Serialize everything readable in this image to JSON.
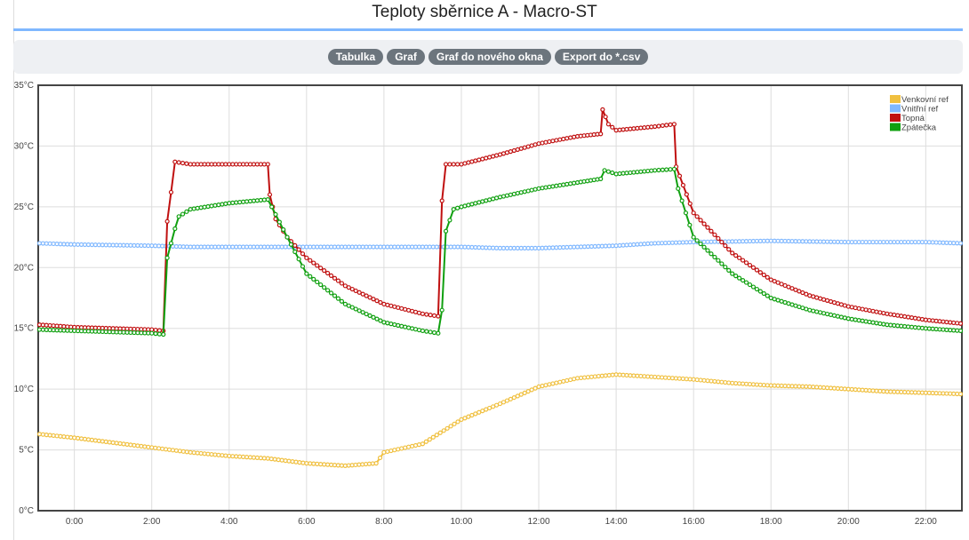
{
  "title": "Teploty sběrnice A - Macro-ST",
  "buttons": [
    "Tabulka",
    "Graf",
    "Graf do nového okna",
    "Export do *.csv"
  ],
  "chart_data": {
    "type": "line",
    "title": "Teploty sběrnice A - Macro-ST",
    "xlabel": "",
    "ylabel": "",
    "x_ticks": [
      "0:00",
      "2:00",
      "4:00",
      "6:00",
      "8:00",
      "10:00",
      "12:00",
      "14:00",
      "16:00",
      "18:00",
      "20:00",
      "22:00"
    ],
    "y_ticks": [
      "0°C",
      "5°C",
      "10°C",
      "15°C",
      "20°C",
      "25°C",
      "30°C",
      "35°C"
    ],
    "ylim": [
      0,
      35
    ],
    "xlim": [
      "23:04",
      "22:56"
    ],
    "grid": true,
    "legend_position": "top-right",
    "series": [
      {
        "name": "Venkovní ref",
        "color": "#f0c040",
        "points": [
          [
            "23:06",
            6.3
          ],
          [
            "0:00",
            6.0
          ],
          [
            "1:00",
            5.6
          ],
          [
            "2:00",
            5.2
          ],
          [
            "3:00",
            4.8
          ],
          [
            "4:00",
            4.5
          ],
          [
            "5:00",
            4.3
          ],
          [
            "6:00",
            3.9
          ],
          [
            "7:00",
            3.7
          ],
          [
            "7:48",
            3.9
          ],
          [
            "8:00",
            4.8
          ],
          [
            "9:00",
            5.5
          ],
          [
            "10:00",
            7.5
          ],
          [
            "11:00",
            8.8
          ],
          [
            "12:00",
            10.2
          ],
          [
            "13:00",
            10.9
          ],
          [
            "14:00",
            11.2
          ],
          [
            "15:00",
            11.0
          ],
          [
            "16:00",
            10.8
          ],
          [
            "17:00",
            10.5
          ],
          [
            "18:00",
            10.3
          ],
          [
            "19:00",
            10.2
          ],
          [
            "20:00",
            10.0
          ],
          [
            "21:00",
            9.8
          ],
          [
            "22:00",
            9.7
          ],
          [
            "22:54",
            9.6
          ]
        ]
      },
      {
        "name": "Vnitřní ref",
        "color": "#80b8ff",
        "points": [
          [
            "23:06",
            22.0
          ],
          [
            "0:00",
            21.9
          ],
          [
            "2:00",
            21.8
          ],
          [
            "3:00",
            21.7
          ],
          [
            "6:00",
            21.7
          ],
          [
            "8:00",
            21.7
          ],
          [
            "10:00",
            21.7
          ],
          [
            "11:00",
            21.6
          ],
          [
            "12:00",
            21.6
          ],
          [
            "14:00",
            21.8
          ],
          [
            "15:00",
            22.0
          ],
          [
            "16:00",
            22.1
          ],
          [
            "18:00",
            22.2
          ],
          [
            "20:00",
            22.1
          ],
          [
            "22:00",
            22.1
          ],
          [
            "22:54",
            22.0
          ]
        ]
      },
      {
        "name": "Topná",
        "color": "#c01010",
        "points": [
          [
            "23:06",
            15.3
          ],
          [
            "0:00",
            15.1
          ],
          [
            "1:00",
            15.0
          ],
          [
            "2:00",
            14.9
          ],
          [
            "2:18",
            14.8
          ],
          [
            "2:24",
            23.8
          ],
          [
            "2:30",
            26.2
          ],
          [
            "2:36",
            28.7
          ],
          [
            "3:00",
            28.5
          ],
          [
            "4:00",
            28.5
          ],
          [
            "5:00",
            28.5
          ],
          [
            "5:03",
            26.0
          ],
          [
            "5:12",
            24.0
          ],
          [
            "5:30",
            22.5
          ],
          [
            "6:00",
            20.8
          ],
          [
            "7:00",
            18.5
          ],
          [
            "8:00",
            17.0
          ],
          [
            "9:00",
            16.2
          ],
          [
            "9:24",
            16.0
          ],
          [
            "9:30",
            25.5
          ],
          [
            "9:36",
            28.5
          ],
          [
            "10:00",
            28.5
          ],
          [
            "11:00",
            29.3
          ],
          [
            "12:00",
            30.2
          ],
          [
            "13:00",
            30.8
          ],
          [
            "13:36",
            31.0
          ],
          [
            "13:39",
            33.0
          ],
          [
            "13:48",
            31.8
          ],
          [
            "14:00",
            31.3
          ],
          [
            "15:00",
            31.6
          ],
          [
            "15:30",
            31.8
          ],
          [
            "15:33",
            28.3
          ],
          [
            "16:00",
            24.5
          ],
          [
            "17:00",
            21.2
          ],
          [
            "18:00",
            19.0
          ],
          [
            "19:00",
            17.7
          ],
          [
            "20:00",
            16.8
          ],
          [
            "21:00",
            16.2
          ],
          [
            "22:00",
            15.7
          ],
          [
            "22:54",
            15.4
          ]
        ]
      },
      {
        "name": "Zpátečka",
        "color": "#10a010",
        "points": [
          [
            "23:06",
            14.9
          ],
          [
            "0:00",
            14.8
          ],
          [
            "1:00",
            14.7
          ],
          [
            "2:00",
            14.6
          ],
          [
            "2:18",
            14.5
          ],
          [
            "2:24",
            20.8
          ],
          [
            "2:36",
            23.2
          ],
          [
            "2:42",
            24.2
          ],
          [
            "3:00",
            24.8
          ],
          [
            "4:00",
            25.3
          ],
          [
            "5:00",
            25.6
          ],
          [
            "5:06",
            25.0
          ],
          [
            "5:30",
            22.5
          ],
          [
            "6:00",
            19.5
          ],
          [
            "7:00",
            17.0
          ],
          [
            "8:00",
            15.5
          ],
          [
            "9:00",
            14.8
          ],
          [
            "9:24",
            14.6
          ],
          [
            "9:30",
            16.5
          ],
          [
            "9:36",
            23.0
          ],
          [
            "9:48",
            24.8
          ],
          [
            "10:00",
            25.0
          ],
          [
            "11:00",
            25.8
          ],
          [
            "12:00",
            26.5
          ],
          [
            "13:00",
            27.0
          ],
          [
            "13:36",
            27.3
          ],
          [
            "13:42",
            28.0
          ],
          [
            "14:00",
            27.7
          ],
          [
            "15:00",
            28.0
          ],
          [
            "15:30",
            28.1
          ],
          [
            "15:36",
            26.5
          ],
          [
            "16:00",
            22.5
          ],
          [
            "17:00",
            19.5
          ],
          [
            "18:00",
            17.5
          ],
          [
            "19:00",
            16.5
          ],
          [
            "20:00",
            15.8
          ],
          [
            "21:00",
            15.3
          ],
          [
            "22:00",
            15.0
          ],
          [
            "22:54",
            14.8
          ]
        ]
      }
    ]
  }
}
